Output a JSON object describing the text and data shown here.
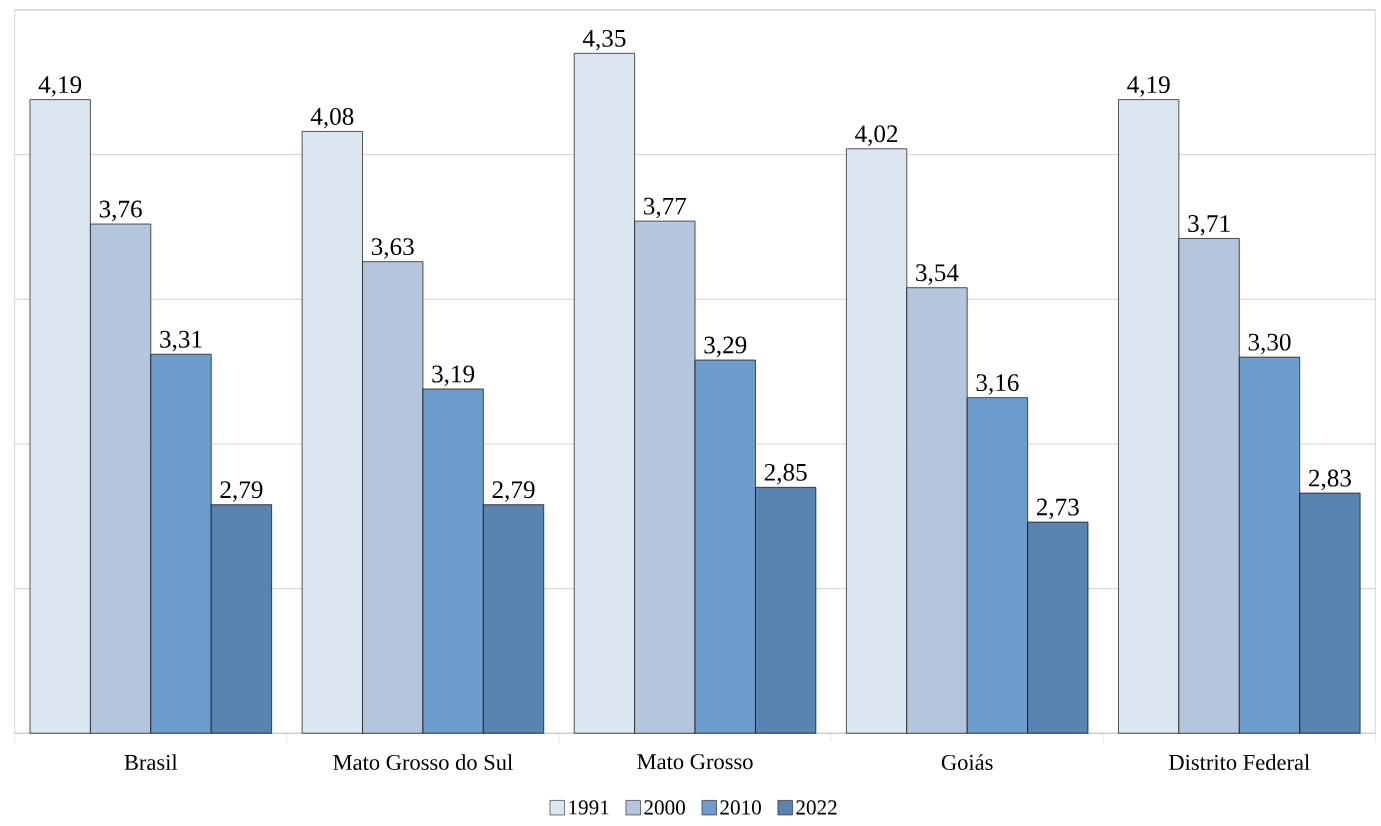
{
  "chart_data": {
    "type": "bar",
    "categories": [
      "Brasil",
      "Mato Grosso do Sul",
      "Mato Grosso",
      "Goiás",
      "Distrito Federal"
    ],
    "series": [
      {
        "name": "1991",
        "color": "#dce6f0",
        "values": [
          4.19,
          4.08,
          4.35,
          4.02,
          4.19
        ],
        "value_labels": [
          "4,19",
          "4,08",
          "4,35",
          "4,02",
          "4,19"
        ]
      },
      {
        "name": "2000",
        "color": "#b3c6dd",
        "values": [
          3.76,
          3.63,
          3.77,
          3.54,
          3.71
        ],
        "value_labels": [
          "3,76",
          "3,63",
          "3,77",
          "3,54",
          "3,71"
        ]
      },
      {
        "name": "2010",
        "color": "#6f9ccf",
        "values": [
          3.31,
          3.19,
          3.29,
          3.16,
          3.3
        ],
        "value_labels": [
          "3,31",
          "3,19",
          "3,29",
          "3,16",
          "3,30"
        ]
      },
      {
        "name": "2022",
        "color": "#5983b0",
        "values": [
          2.79,
          2.79,
          2.85,
          2.73,
          2.83
        ],
        "value_labels": [
          "2,79",
          "2,79",
          "2,85",
          "2,73",
          "2,83"
        ]
      }
    ],
    "ylim": [
      2,
      4.5
    ],
    "yticks": [
      {
        "value": 2,
        "label": null
      },
      {
        "value": 2.5,
        "label": null
      },
      {
        "value": 3,
        "label": null
      },
      {
        "value": 3.5,
        "label": null
      },
      {
        "value": 4,
        "label": null
      },
      {
        "value": 4.5,
        "label": null
      }
    ],
    "tick_labels": "x",
    "grid": "y",
    "legend": "bottom"
  }
}
